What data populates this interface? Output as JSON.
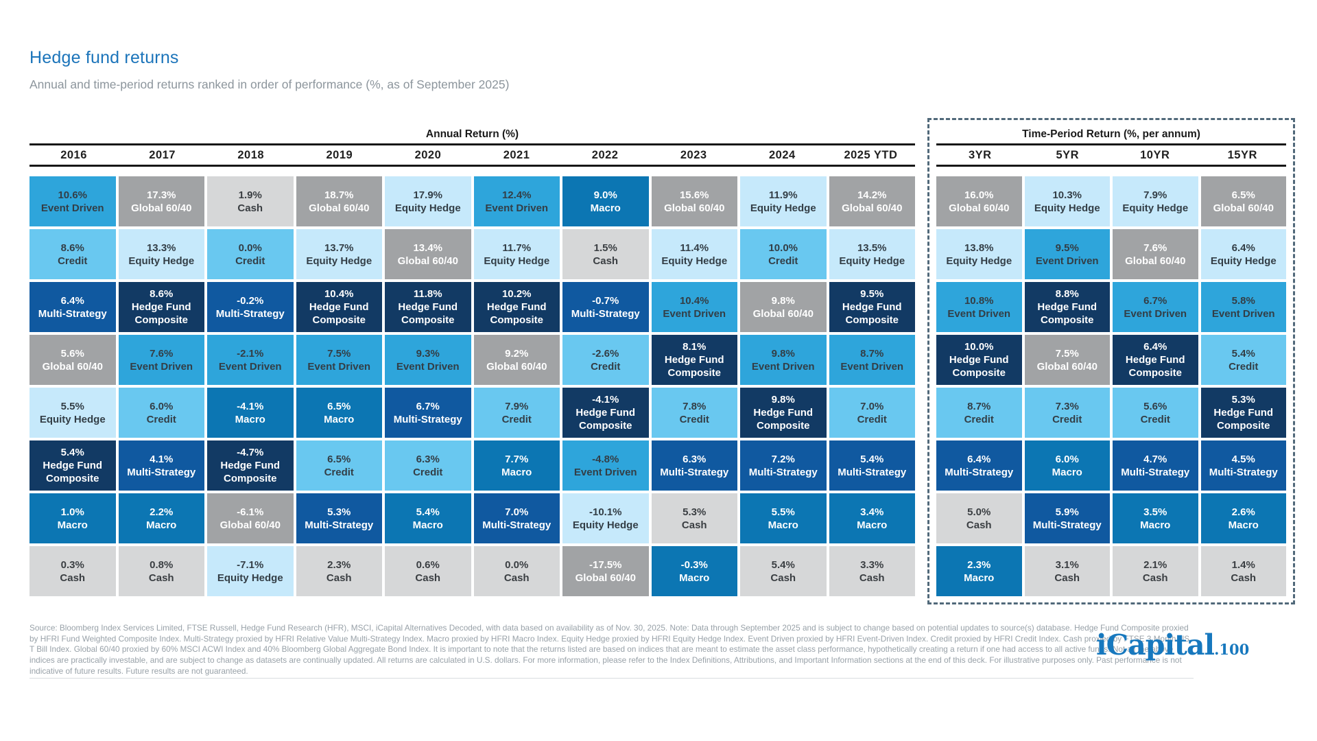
{
  "page": {
    "title": "Hedge fund returns",
    "subtitle": "Annual and time-period returns ranked in order of performance (%, as of September 2025)"
  },
  "colors": {
    "title_blue": "#1B74BA",
    "subtitle_gray": "#8C959C",
    "header_rule": "#161616",
    "dashed_border": "#51697A",
    "footer_gray": "#98A1A8",
    "divider_gray": "#D9DDE0",
    "logo_blue": "#1778BE"
  },
  "strategy_colors": {
    "Event Driven": {
      "bg": "#2EA5DB",
      "text": "#333E46"
    },
    "Credit": {
      "bg": "#69C8F0",
      "text": "#333E46"
    },
    "Equity Hedge": {
      "bg": "#C6E9FB",
      "text": "#333E46"
    },
    "Cash": {
      "bg": "#D6D7D8",
      "text": "#3A3E42"
    },
    "Global 60/40": {
      "bg": "#A1A3A5",
      "text": "#FFFFFF"
    },
    "Macro": {
      "bg": "#0C76B3",
      "text": "#FFFFFF"
    },
    "Multi-Strategy": {
      "bg": "#1059A0",
      "text": "#FFFFFF"
    },
    "Hedge Fund Composite": {
      "bg": "#123A64",
      "text": "#FFFFFF"
    }
  },
  "chart_data": {
    "type": "table",
    "title": "Hedge fund returns",
    "subtitle": "Annual and time-period returns ranked in order of performance (%, as of September 2025)",
    "layout": "performance quilt; each column ranks strategies best-to-worst top-to-bottom",
    "groups": [
      {
        "label": "Annual Return (%)",
        "columns": [
          {
            "header": "2016",
            "cells": [
              {
                "value": "10.6%",
                "strategy": "Event Driven"
              },
              {
                "value": "8.6%",
                "strategy": "Credit"
              },
              {
                "value": "6.4%",
                "strategy": "Multi-Strategy"
              },
              {
                "value": "5.6%",
                "strategy": "Global 60/40"
              },
              {
                "value": "5.5%",
                "strategy": "Equity Hedge"
              },
              {
                "value": "5.4%",
                "strategy": "Hedge Fund Composite"
              },
              {
                "value": "1.0%",
                "strategy": "Macro"
              },
              {
                "value": "0.3%",
                "strstrategy": "Cash",
                "strategy": "Cash"
              }
            ]
          },
          {
            "header": "2017",
            "cells": [
              {
                "value": "17.3%",
                "strategy": "Global 60/40"
              },
              {
                "value": "13.3%",
                "strategy": "Equity Hedge"
              },
              {
                "value": "8.6%",
                "strategy": "Hedge Fund Composite"
              },
              {
                "value": "7.6%",
                "strategy": "Event Driven"
              },
              {
                "value": "6.0%",
                "strategy": "Credit"
              },
              {
                "value": "4.1%",
                "strategy": "Multi-Strategy"
              },
              {
                "value": "2.2%",
                "strategy": "Macro"
              },
              {
                "value": "0.8%",
                "strategy": "Cash"
              }
            ]
          },
          {
            "header": "2018",
            "cells": [
              {
                "value": "1.9%",
                "strategy": "Cash"
              },
              {
                "value": "0.0%",
                "strategy": "Credit"
              },
              {
                "value": "-0.2%",
                "strategy": "Multi-Strategy"
              },
              {
                "value": "-2.1%",
                "strategy": "Event Driven"
              },
              {
                "value": "-4.1%",
                "strategy": "Macro"
              },
              {
                "value": "-4.7%",
                "strategy": "Hedge Fund Composite"
              },
              {
                "value": "-6.1%",
                "strategy": "Global 60/40"
              },
              {
                "value": "-7.1%",
                "strategy": "Equity Hedge"
              }
            ]
          },
          {
            "header": "2019",
            "cells": [
              {
                "value": "18.7%",
                "strategy": "Global 60/40"
              },
              {
                "value": "13.7%",
                "strategy": "Equity Hedge"
              },
              {
                "value": "10.4%",
                "strategy": "Hedge Fund Composite"
              },
              {
                "value": "7.5%",
                "strategy": "Event Driven"
              },
              {
                "value": "6.5%",
                "strategy": "Macro"
              },
              {
                "value": "6.5%",
                "strategy": "Credit"
              },
              {
                "value": "5.3%",
                "strategy": "Multi-Strategy"
              },
              {
                "value": "2.3%",
                "strategy": "Cash"
              }
            ]
          },
          {
            "header": "2020",
            "cells": [
              {
                "value": "17.9%",
                "strategy": "Equity Hedge"
              },
              {
                "value": "13.4%",
                "strategy": "Global 60/40"
              },
              {
                "value": "11.8%",
                "strategy": "Hedge Fund Composite"
              },
              {
                "value": "9.3%",
                "strategy": "Event Driven"
              },
              {
                "value": "6.7%",
                "strategy": "Multi-Strategy"
              },
              {
                "value": "6.3%",
                "strategy": "Credit"
              },
              {
                "value": "5.4%",
                "strategy": "Macro"
              },
              {
                "value": "0.6%",
                "strategy": "Cash"
              }
            ]
          },
          {
            "header": "2021",
            "cells": [
              {
                "value": "12.4%",
                "strategy": "Event Driven"
              },
              {
                "value": "11.7%",
                "strategy": "Equity Hedge"
              },
              {
                "value": "10.2%",
                "strategy": "Hedge Fund Composite"
              },
              {
                "value": "9.2%",
                "strategy": "Global 60/40"
              },
              {
                "value": "7.9%",
                "strategy": "Credit"
              },
              {
                "value": "7.7%",
                "strategy": "Macro"
              },
              {
                "value": "7.0%",
                "strategy": "Multi-Strategy"
              },
              {
                "value": "0.0%",
                "strategy": "Cash"
              }
            ]
          },
          {
            "header": "2022",
            "cells": [
              {
                "value": "9.0%",
                "strategy": "Macro"
              },
              {
                "value": "1.5%",
                "strategy": "Cash"
              },
              {
                "value": "-0.7%",
                "strategy": "Multi-Strategy"
              },
              {
                "value": "-2.6%",
                "strategy": "Credit"
              },
              {
                "value": "-4.1%",
                "strategy": "Hedge Fund Composite"
              },
              {
                "value": "-4.8%",
                "strategy": "Event Driven"
              },
              {
                "value": "-10.1%",
                "strategy": "Equity Hedge"
              },
              {
                "value": "-17.5%",
                "strategy": "Global 60/40"
              }
            ]
          },
          {
            "header": "2023",
            "cells": [
              {
                "value": "15.6%",
                "strategy": "Global 60/40"
              },
              {
                "value": "11.4%",
                "strategy": "Equity Hedge"
              },
              {
                "value": "10.4%",
                "strategy": "Event Driven"
              },
              {
                "value": "8.1%",
                "strategy": "Hedge Fund Composite"
              },
              {
                "value": "7.8%",
                "strategy": "Credit"
              },
              {
                "value": "6.3%",
                "strategy": "Multi-Strategy"
              },
              {
                "value": "5.3%",
                "strategy": "Cash"
              },
              {
                "value": "-0.3%",
                "strategy": "Macro"
              }
            ]
          },
          {
            "header": "2024",
            "cells": [
              {
                "value": "11.9%",
                "strategy": "Equity Hedge"
              },
              {
                "value": "10.0%",
                "strategy": "Credit"
              },
              {
                "value": "9.8%",
                "strategy": "Global 60/40"
              },
              {
                "value": "9.8%",
                "strategy": "Event Driven"
              },
              {
                "value": "9.8%",
                "strategy": "Hedge Fund Composite"
              },
              {
                "value": "7.2%",
                "strategy": "Multi-Strategy"
              },
              {
                "value": "5.5%",
                "strategy": "Macro"
              },
              {
                "value": "5.4%",
                "strategy": "Cash"
              }
            ]
          },
          {
            "header": "2025 YTD",
            "cells": [
              {
                "value": "14.2%",
                "strategy": "Global 60/40"
              },
              {
                "value": "13.5%",
                "strategy": "Equity Hedge"
              },
              {
                "value": "9.5%",
                "strategy": "Hedge Fund Composite"
              },
              {
                "value": "8.7%",
                "strategy": "Event Driven"
              },
              {
                "value": "7.0%",
                "strategy": "Credit"
              },
              {
                "value": "5.4%",
                "strategy": "Multi-Strategy"
              },
              {
                "value": "3.4%",
                "strategy": "Macro"
              },
              {
                "value": "3.3%",
                "strategy": "Cash"
              }
            ]
          }
        ]
      },
      {
        "label": "Time-Period Return (%, per annum)",
        "columns": [
          {
            "header": "3YR",
            "cells": [
              {
                "value": "16.0%",
                "strategy": "Global 60/40"
              },
              {
                "value": "13.8%",
                "strategy": "Equity Hedge"
              },
              {
                "value": "10.8%",
                "strategy": "Event Driven"
              },
              {
                "value": "10.0%",
                "strategy": "Hedge Fund Composite"
              },
              {
                "value": "8.7%",
                "strategy": "Credit"
              },
              {
                "value": "6.4%",
                "strategy": "Multi-Strategy"
              },
              {
                "value": "5.0%",
                "strategy": "Cash"
              },
              {
                "value": "2.3%",
                "strategy": "Macro"
              }
            ]
          },
          {
            "header": "5YR",
            "cells": [
              {
                "value": "10.3%",
                "strategy": "Equity Hedge"
              },
              {
                "value": "9.5%",
                "strategy": "Event Driven"
              },
              {
                "value": "8.8%",
                "strategy": "Hedge Fund Composite"
              },
              {
                "value": "7.5%",
                "strategy": "Global 60/40"
              },
              {
                "value": "7.3%",
                "strategy": "Credit"
              },
              {
                "value": "6.0%",
                "strategy": "Macro"
              },
              {
                "value": "5.9%",
                "strategy": "Multi-Strategy"
              },
              {
                "value": "3.1%",
                "strategy": "Cash"
              }
            ]
          },
          {
            "header": "10YR",
            "cells": [
              {
                "value": "7.9%",
                "strategy": "Equity Hedge"
              },
              {
                "value": "7.6%",
                "strategy": "Global 60/40"
              },
              {
                "value": "6.7%",
                "strategy": "Event Driven"
              },
              {
                "value": "6.4%",
                "strategy": "Hedge Fund Composite"
              },
              {
                "value": "5.6%",
                "strategy": "Credit"
              },
              {
                "value": "4.7%",
                "strategy": "Multi-Strategy"
              },
              {
                "value": "3.5%",
                "strategy": "Macro"
              },
              {
                "value": "2.1%",
                "strategy": "Cash"
              }
            ]
          },
          {
            "header": "15YR",
            "cells": [
              {
                "value": "6.5%",
                "strategy": "Global 60/40"
              },
              {
                "value": "6.4%",
                "strategy": "Equity Hedge"
              },
              {
                "value": "5.8%",
                "strategy": "Event Driven"
              },
              {
                "value": "5.4%",
                "strategy": "Credit"
              },
              {
                "value": "5.3%",
                "strategy": "Hedge Fund Composite"
              },
              {
                "value": "4.5%",
                "strategy": "Multi-Strategy"
              },
              {
                "value": "2.6%",
                "strategy": "Macro"
              },
              {
                "value": "1.4%",
                "strategy": "Cash"
              }
            ]
          }
        ]
      }
    ]
  },
  "footer": {
    "text": "Source: Bloomberg Index Services Limited, FTSE Russell, Hedge Fund Research (HFR), MSCI, iCapital Alternatives Decoded, with data based on availability as of Nov. 30, 2025. Note: Data through September 2025 and is subject to change based on potential updates to source(s) database. Hedge Fund Composite proxied by HFRI Fund Weighted Composite Index. Multi-Strategy proxied by HFRI Relative Value Multi-Strategy Index. Macro proxied by HFRI Macro Index. Equity Hedge proxied by HFRI Equity Hedge Index. Event Driven proxied by HFRI Event-Driven Index. Credit proxied by HFRI Credit Index. Cash proxied by FTSE 3 Month US T Bill Index. Global 60/40 proxied by 60% MSCI ACWI Index and 40% Bloomberg Global Aggregate Bond Index. It is important to note that the returns listed are based on indices that are meant to estimate the asset class performance, hypothetically creating a return if one had access to all active funds. Not all the above indices are practically investable, and are subject to change as datasets are continually updated. All returns are calculated in U.S. dollars. For more information, please refer to the Index Definitions, Attributions, and Important Information sections at the end of this deck. For illustrative purposes only. Past performance is not indicative of future results. Future results are not guaranteed."
  },
  "logo": {
    "name": "iCapital",
    "suffix": ".100"
  }
}
